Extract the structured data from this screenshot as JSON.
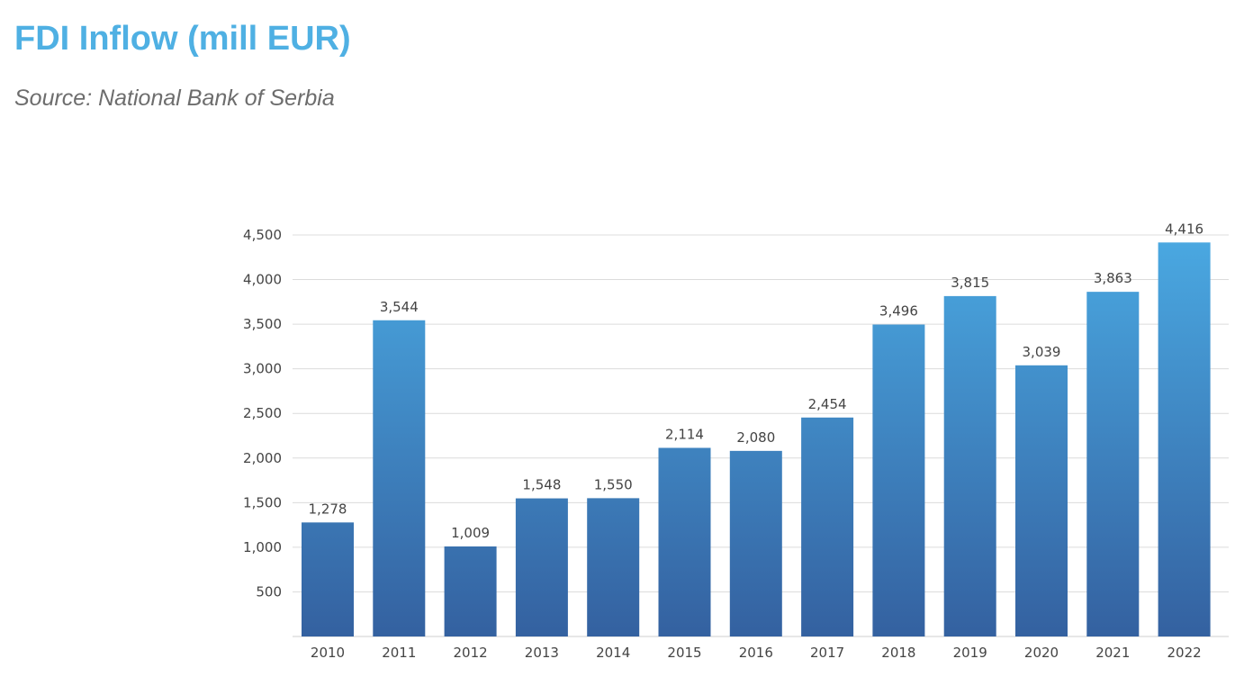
{
  "title": "FDI Inflow (mill EUR)",
  "subtitle": "Source: National Bank of Serbia",
  "chart_data": {
    "type": "bar",
    "title": "FDI Inflow (mill EUR)",
    "subtitle": "Source: National Bank of Serbia",
    "xlabel": "",
    "ylabel": "",
    "categories": [
      "2010",
      "2011",
      "2012",
      "2013",
      "2014",
      "2015",
      "2016",
      "2017",
      "2018",
      "2019",
      "2020",
      "2021",
      "2022"
    ],
    "values": [
      1278,
      3544,
      1009,
      1548,
      1550,
      2114,
      2080,
      2454,
      3496,
      3815,
      3039,
      3863,
      4416
    ],
    "data_labels": [
      "1,278",
      "3,544",
      "1,009",
      "1,548",
      "1,550",
      "2,114",
      "2,080",
      "2,454",
      "3,496",
      "3,815",
      "3,039",
      "3,863",
      "4,416"
    ],
    "y_ticks": [
      500,
      1000,
      1500,
      2000,
      2500,
      3000,
      3500,
      4000,
      4500
    ],
    "y_tick_labels": [
      "500",
      "1,000",
      "1,500",
      "2,000",
      "2,500",
      "3,000",
      "3,500",
      "4,000",
      "4,500"
    ],
    "ylim": [
      0,
      4500
    ],
    "grid": true,
    "legend": "none",
    "colors": {
      "bar_top": "#4aa9e2",
      "bar_bottom": "#3461a0",
      "title": "#4fb0e3"
    }
  }
}
